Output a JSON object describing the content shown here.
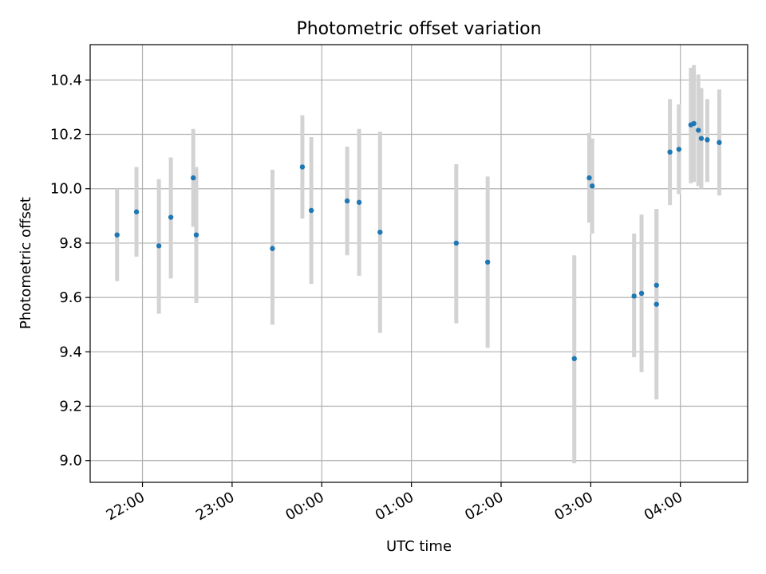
{
  "chart_data": {
    "type": "scatter",
    "title": "Photometric offset variation",
    "xlabel": "UTC time",
    "ylabel": "Photometric offset",
    "x_is_time": true,
    "xlim": [
      "21:25",
      "28:45"
    ],
    "ylim": [
      8.92,
      10.53
    ],
    "x_ticks": [
      "22:00",
      "23:00",
      "00:00",
      "01:00",
      "02:00",
      "03:00",
      "04:00"
    ],
    "y_ticks": [
      "9.0",
      "9.2",
      "9.4",
      "9.6",
      "9.8",
      "10.0",
      "10.2",
      "10.4"
    ],
    "grid": true,
    "colors": {
      "marker": "#1f77b4",
      "errorbar": "#d3d3d3",
      "grid": "#b0b0b0"
    },
    "points": [
      {
        "time": "21:43",
        "y": 9.83,
        "low": 9.66,
        "high": 10.0
      },
      {
        "time": "21:56",
        "y": 9.915,
        "low": 9.75,
        "high": 10.08
      },
      {
        "time": "22:11",
        "y": 9.79,
        "low": 9.54,
        "high": 10.035
      },
      {
        "time": "22:19",
        "y": 9.895,
        "low": 9.67,
        "high": 10.115
      },
      {
        "time": "22:34",
        "y": 10.04,
        "low": 9.86,
        "high": 10.22
      },
      {
        "time": "22:36",
        "y": 9.83,
        "low": 9.58,
        "high": 10.08
      },
      {
        "time": "23:27",
        "y": 9.78,
        "low": 9.5,
        "high": 10.07
      },
      {
        "time": "23:47",
        "y": 10.08,
        "low": 9.89,
        "high": 10.27
      },
      {
        "time": "23:53",
        "y": 9.92,
        "low": 9.65,
        "high": 10.19
      },
      {
        "time": "00:17",
        "y": 9.955,
        "low": 9.755,
        "high": 10.155
      },
      {
        "time": "00:25",
        "y": 9.95,
        "low": 9.68,
        "high": 10.22
      },
      {
        "time": "00:39",
        "y": 9.84,
        "low": 9.47,
        "high": 10.21
      },
      {
        "time": "01:30",
        "y": 9.8,
        "low": 9.505,
        "high": 10.09
      },
      {
        "time": "01:51",
        "y": 9.73,
        "low": 9.415,
        "high": 10.045
      },
      {
        "time": "02:49",
        "y": 9.375,
        "low": 8.99,
        "high": 9.755
      },
      {
        "time": "02:59",
        "y": 10.04,
        "low": 9.875,
        "high": 10.205
      },
      {
        "time": "03:01",
        "y": 10.01,
        "low": 9.835,
        "high": 10.185
      },
      {
        "time": "03:29",
        "y": 9.605,
        "low": 9.38,
        "high": 9.835
      },
      {
        "time": "03:34",
        "y": 9.615,
        "low": 9.325,
        "high": 9.905
      },
      {
        "time": "03:44",
        "y": 9.645,
        "low": 9.37,
        "high": 9.925
      },
      {
        "time": "03:44",
        "y": 9.575,
        "low": 9.225,
        "high": 9.925
      },
      {
        "time": "03:53",
        "y": 10.135,
        "low": 9.94,
        "high": 10.33
      },
      {
        "time": "03:59",
        "y": 10.145,
        "low": 9.98,
        "high": 10.31
      },
      {
        "time": "04:07",
        "y": 10.235,
        "low": 10.02,
        "high": 10.445
      },
      {
        "time": "04:09",
        "y": 10.24,
        "low": 10.025,
        "high": 10.455
      },
      {
        "time": "04:12",
        "y": 10.215,
        "low": 10.01,
        "high": 10.42
      },
      {
        "time": "04:14",
        "y": 10.185,
        "low": 10.0,
        "high": 10.37
      },
      {
        "time": "04:18",
        "y": 10.18,
        "low": 10.025,
        "high": 10.33
      },
      {
        "time": "04:26",
        "y": 10.17,
        "low": 9.975,
        "high": 10.365
      }
    ]
  }
}
